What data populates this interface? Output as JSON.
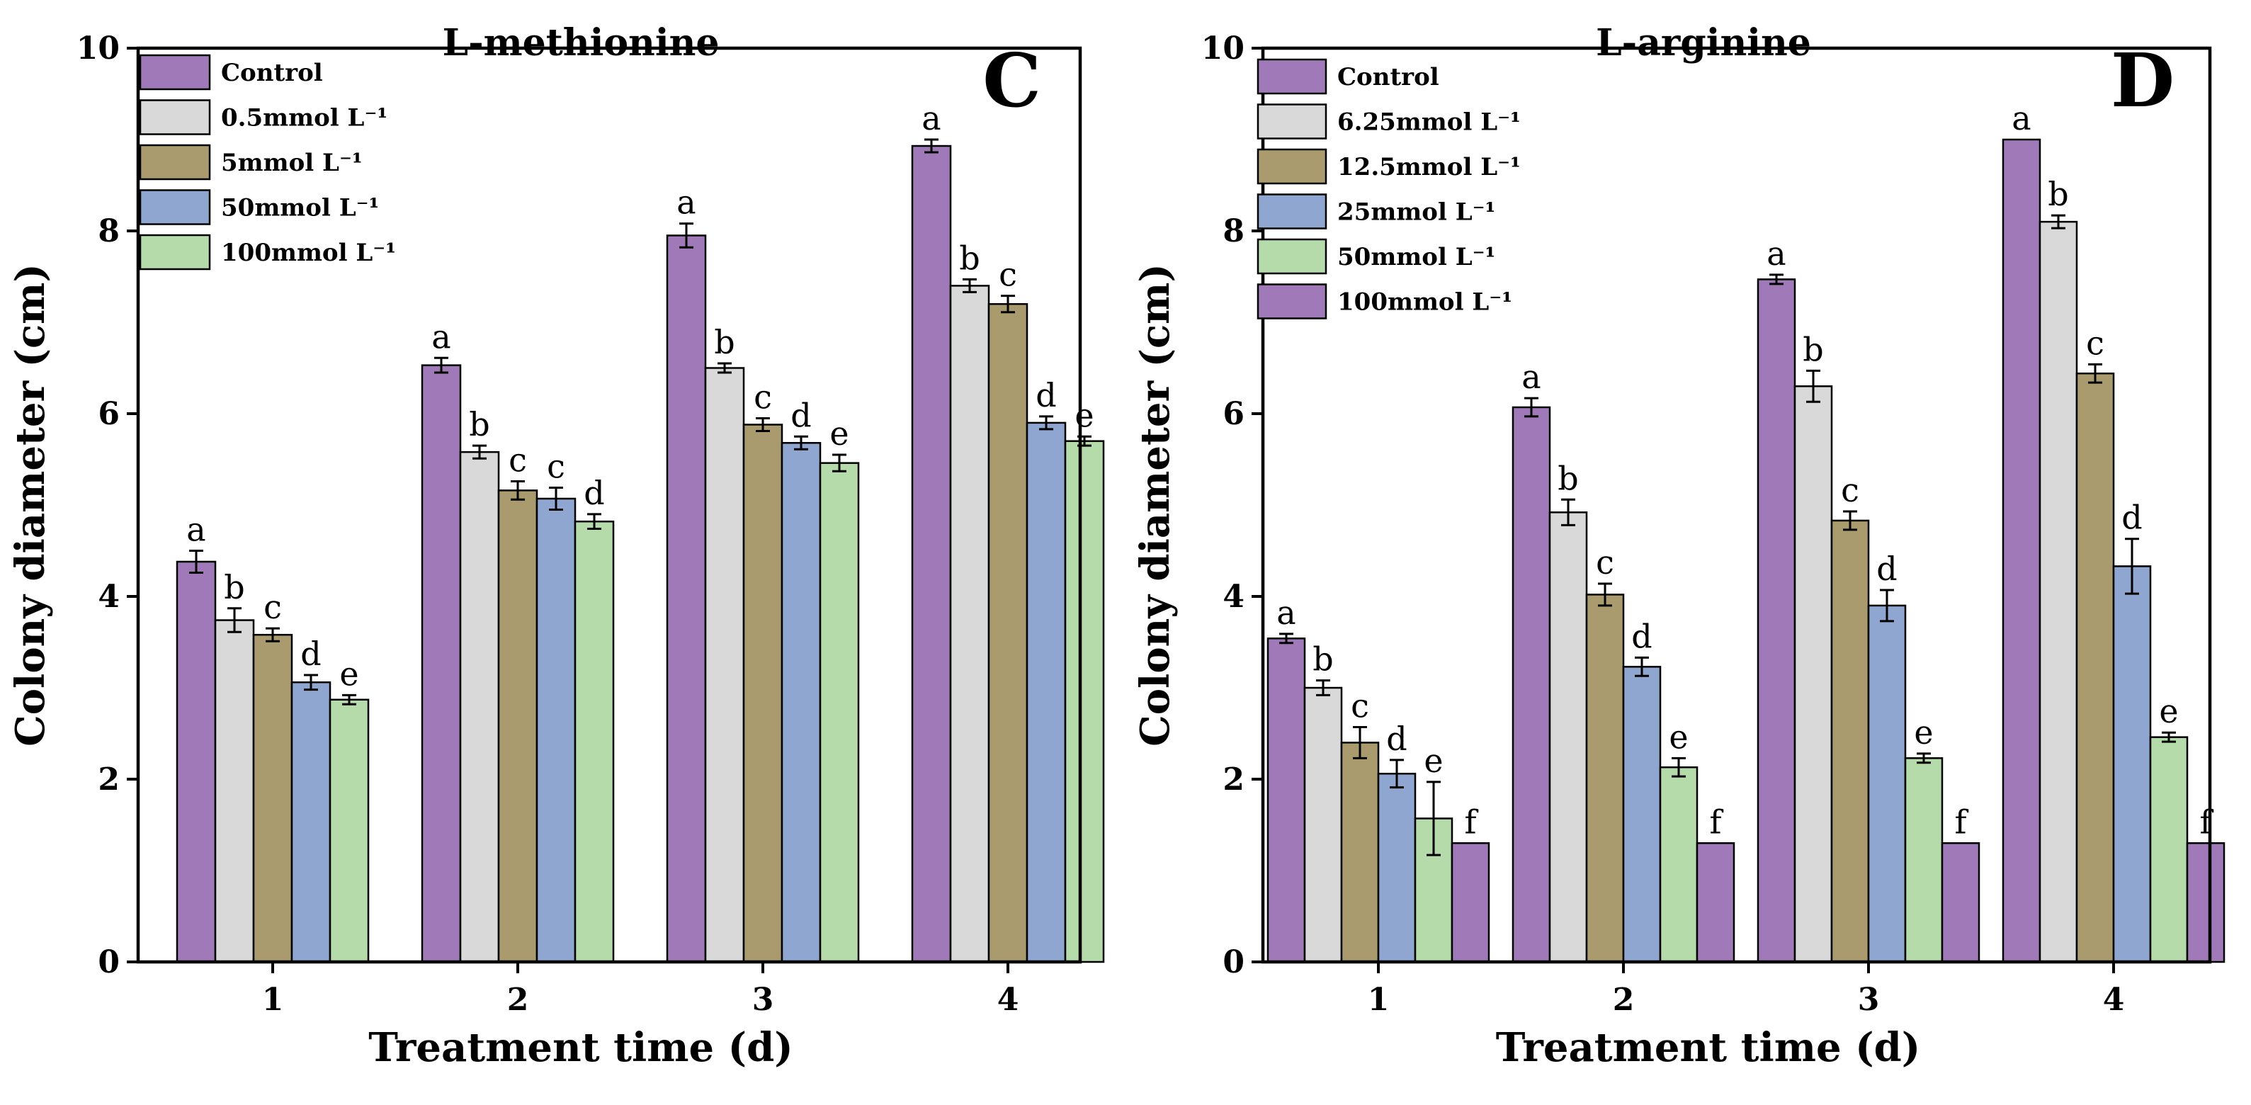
{
  "colors": {
    "purple": "#a07ab8",
    "gray": "#d9d9d9",
    "olive": "#a99b6e",
    "blue": "#8ea6d0",
    "green": "#b4dba9"
  },
  "chart_data": [
    {
      "type": "bar",
      "title": "L-methionine",
      "panel": "C",
      "xlabel": "Treatment time (d)",
      "ylabel": "Colony diameter (cm)",
      "ylim": [
        0,
        10
      ],
      "yticks": [
        "0",
        "2",
        "4",
        "6",
        "8",
        "10"
      ],
      "categories": [
        "1",
        "2",
        "3",
        "4"
      ],
      "series": [
        {
          "name": "Control",
          "color_key": "purple",
          "values": [
            4.38,
            6.53,
            7.95,
            8.93
          ],
          "errors": [
            0.12,
            0.08,
            0.13,
            0.07
          ],
          "letters": [
            "a",
            "a",
            "a",
            "a"
          ]
        },
        {
          "name": "0.5mmol L⁻¹",
          "color_key": "gray",
          "values": [
            3.74,
            5.58,
            6.5,
            7.4
          ],
          "errors": [
            0.13,
            0.07,
            0.05,
            0.07
          ],
          "letters": [
            "b",
            "b",
            "b",
            "b"
          ]
        },
        {
          "name": "5mmol L⁻¹",
          "color_key": "olive",
          "values": [
            3.58,
            5.16,
            5.88,
            7.2
          ],
          "errors": [
            0.07,
            0.1,
            0.07,
            0.09
          ],
          "letters": [
            "c",
            "c",
            "c",
            "c"
          ]
        },
        {
          "name": "50mmol L⁻¹",
          "color_key": "blue",
          "values": [
            3.06,
            5.07,
            5.68,
            5.9
          ],
          "errors": [
            0.08,
            0.12,
            0.07,
            0.07
          ],
          "letters": [
            "d",
            "c",
            "d",
            "d"
          ]
        },
        {
          "name": "100mmol L⁻¹",
          "color_key": "green",
          "values": [
            2.87,
            4.82,
            5.46,
            5.7
          ],
          "errors": [
            0.05,
            0.08,
            0.09,
            0.05
          ],
          "letters": [
            "e",
            "d",
            "e",
            "e"
          ]
        }
      ]
    },
    {
      "type": "bar",
      "title": "L-arginine",
      "panel": "D",
      "xlabel": "Treatment time (d)",
      "ylabel": "Colony diameter (cm)",
      "ylim": [
        0,
        10
      ],
      "yticks": [
        "0",
        "2",
        "4",
        "6",
        "8",
        "10"
      ],
      "categories": [
        "1",
        "2",
        "3",
        "4"
      ],
      "series": [
        {
          "name": "Control",
          "color_key": "purple",
          "values": [
            3.54,
            6.07,
            7.47,
            9.0
          ],
          "errors": [
            0.05,
            0.1,
            0.05,
            0.0
          ],
          "letters": [
            "a",
            "a",
            "a",
            "a"
          ]
        },
        {
          "name": "6.25mmol L⁻¹",
          "color_key": "gray",
          "values": [
            3.0,
            4.92,
            6.3,
            8.1
          ],
          "errors": [
            0.08,
            0.14,
            0.17,
            0.07
          ],
          "letters": [
            "b",
            "b",
            "b",
            "b"
          ]
        },
        {
          "name": "12.5mmol L⁻¹",
          "color_key": "olive",
          "values": [
            2.4,
            4.02,
            4.83,
            6.44
          ],
          "errors": [
            0.17,
            0.12,
            0.1,
            0.1
          ],
          "letters": [
            "c",
            "c",
            "c",
            "c"
          ]
        },
        {
          "name": "25mmol L⁻¹",
          "color_key": "blue",
          "values": [
            2.06,
            3.23,
            3.9,
            4.33
          ],
          "errors": [
            0.15,
            0.1,
            0.17,
            0.3
          ],
          "letters": [
            "d",
            "d",
            "d",
            "d"
          ]
        },
        {
          "name": "50mmol L⁻¹",
          "color_key": "green",
          "values": [
            1.57,
            2.13,
            2.23,
            2.46
          ],
          "errors": [
            0.4,
            0.1,
            0.05,
            0.05
          ],
          "letters": [
            "e",
            "e",
            "e",
            "e"
          ]
        },
        {
          "name": "100mmol L⁻¹",
          "color_key": "purple",
          "values": [
            1.3,
            1.3,
            1.3,
            1.3
          ],
          "errors": [
            0,
            0,
            0,
            0
          ],
          "letters": [
            "f",
            "f",
            "f",
            "f"
          ]
        }
      ]
    }
  ]
}
